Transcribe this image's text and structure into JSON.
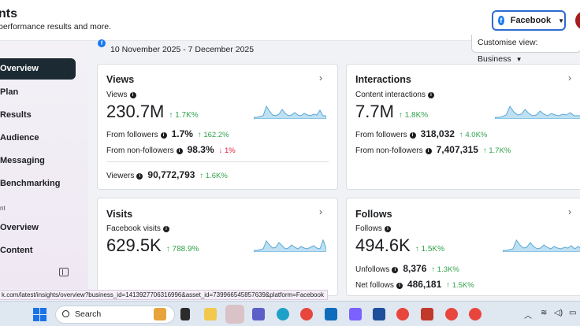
{
  "header": {
    "title": "nts",
    "subtitle": "performance results and more.",
    "platform_label": "Facebook"
  },
  "sidebar": {
    "items": [
      {
        "label": "Overview",
        "active": true
      },
      {
        "label": "Plan"
      },
      {
        "label": "Results"
      },
      {
        "label": "Audience"
      },
      {
        "label": "Messaging"
      },
      {
        "label": "Benchmarking"
      }
    ],
    "section_label": "nt",
    "section_items": [
      {
        "label": "Overview"
      },
      {
        "label": "Content"
      }
    ]
  },
  "date_range": "10 November 2025 - 7 December 2025",
  "customise_label": "Customise view: Business",
  "cards": {
    "views": {
      "title": "Views",
      "metric_label": "Views",
      "value": "230.7M",
      "change": "1.7K%",
      "rows": [
        {
          "label": "From followers",
          "value": "1.7%",
          "change": "162.2%",
          "direction": "up"
        },
        {
          "label": "From non-followers",
          "value": "98.3%",
          "change": "1%",
          "direction": "down"
        }
      ],
      "footer_label": "Viewers",
      "footer_value": "90,772,793",
      "footer_change": "1.6K%"
    },
    "interactions": {
      "title": "Interactions",
      "metric_label": "Content interactions",
      "value": "7.7M",
      "change": "1.8K%",
      "rows": [
        {
          "label": "From followers",
          "value": "318,032",
          "change": "4.0K%",
          "direction": "up"
        },
        {
          "label": "From non-followers",
          "value": "7,407,315",
          "change": "1.7K%",
          "direction": "up"
        }
      ]
    },
    "visits": {
      "title": "Visits",
      "metric_label": "Facebook visits",
      "value": "629.5K",
      "change": "788.9%"
    },
    "follows": {
      "title": "Follows",
      "metric_label": "Follows",
      "value": "494.6K",
      "change": "1.5K%",
      "rows": [
        {
          "label": "Unfollows",
          "value": "8,376",
          "change": "1.3K%",
          "direction": "up"
        },
        {
          "label": "Net follows",
          "value": "486,181",
          "change": "1.5K%",
          "direction": "up"
        }
      ]
    }
  },
  "status_url": "k.com/latest/insights/overview?business_id=1413927706316996&asset_id=739966545857639&platform=Facebook",
  "taskbar": {
    "search_placeholder": "Search"
  },
  "colors": {
    "accent": "#1877f2",
    "positive": "#31a24c",
    "negative": "#e41e3f",
    "nav_active": "#1c2b33",
    "spark_fill": "#bfe0f2",
    "spark_line": "#5aa7d6"
  }
}
